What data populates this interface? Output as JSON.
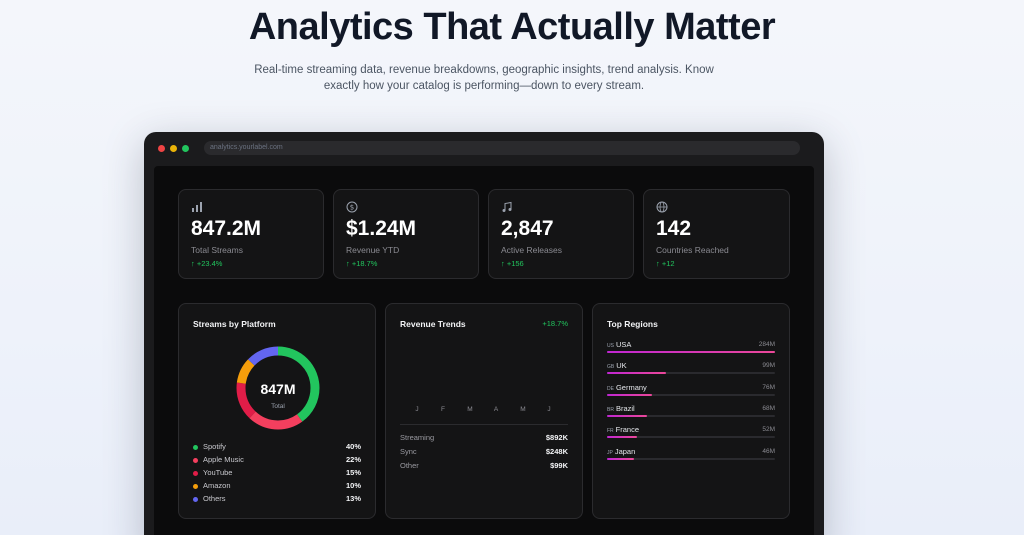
{
  "hero": {
    "title": "Analytics That Actually Matter",
    "subtitle": "Real-time streaming data, revenue breakdowns, geographic insights, trend analysis. Know exactly how your catalog is performing—down to every stream."
  },
  "browser": {
    "url": "analytics.yourlabel.com"
  },
  "stats": [
    {
      "icon": "bar-chart-icon",
      "value": "847.2M",
      "label": "Total Streams",
      "change": "↑ +23.4%"
    },
    {
      "icon": "dollar-icon",
      "value": "$1.24M",
      "label": "Revenue YTD",
      "change": "↑ +18.7%"
    },
    {
      "icon": "music-note-icon",
      "value": "2,847",
      "label": "Active Releases",
      "change": "↑ +156"
    },
    {
      "icon": "globe-icon",
      "value": "142",
      "label": "Countries Reached",
      "change": "↑ +12"
    }
  ],
  "platform_panel": {
    "title": "Streams by Platform",
    "center_value": "847M",
    "center_label": "Total"
  },
  "revenue_panel": {
    "title": "Revenue Trends",
    "change": "+18.7%",
    "months": [
      "J",
      "F",
      "M",
      "A",
      "M",
      "J"
    ],
    "rows": [
      {
        "label": "Streaming",
        "value": "$892K"
      },
      {
        "label": "Sync",
        "value": "$248K"
      },
      {
        "label": "Other",
        "value": "$99K"
      }
    ]
  },
  "regions_panel": {
    "title": "Top Regions",
    "regions": [
      {
        "flag": "US",
        "name": "USA",
        "count": "284M",
        "share": 1.0
      },
      {
        "flag": "GB",
        "name": "UK",
        "count": "99M",
        "share": 0.35
      },
      {
        "flag": "DE",
        "name": "Germany",
        "count": "76M",
        "share": 0.27
      },
      {
        "flag": "BR",
        "name": "Brazil",
        "count": "68M",
        "share": 0.24
      },
      {
        "flag": "FR",
        "name": "France",
        "count": "52M",
        "share": 0.18
      },
      {
        "flag": "JP",
        "name": "Japan",
        "count": "46M",
        "share": 0.16
      }
    ]
  },
  "chart_data": {
    "type": "pie",
    "categories": [
      "Spotify",
      "Apple Music",
      "YouTube",
      "Amazon",
      "Others"
    ],
    "values": [
      40,
      22,
      15,
      10,
      13
    ],
    "value_labels": [
      "40%",
      "22%",
      "15%",
      "10%",
      "13%"
    ],
    "colors": [
      "#22c55e",
      "#f43f5e",
      "#e11d48",
      "#f59e0b",
      "#6366f1"
    ],
    "title": "Streams by Platform"
  }
}
